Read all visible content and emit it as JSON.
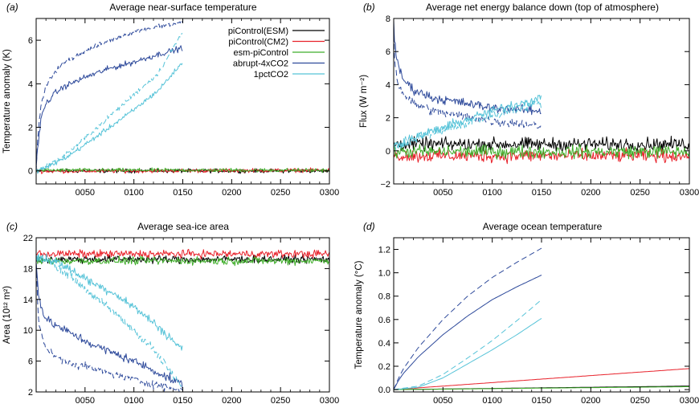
{
  "colors": {
    "piControl_ESM": "#000000",
    "piControl_CM2": "#e8212a",
    "esm_piControl": "#3fae2a",
    "abrupt_4xCO2": "#2e4a9b",
    "pct1CO2": "#56c3d8"
  },
  "legend": {
    "position": "top-right of panel (a)",
    "entries": [
      {
        "label": "piControl(ESM)",
        "color": "#000000"
      },
      {
        "label": "piControl(CM2)",
        "color": "#e8212a"
      },
      {
        "label": "esm-piControl",
        "color": "#3fae2a"
      },
      {
        "label": "abrupt-4xCO2",
        "color": "#2e4a9b"
      },
      {
        "label": "1pctCO2",
        "color": "#56c3d8"
      }
    ]
  },
  "chart_data": [
    {
      "type": "line",
      "panel_label": "(a)",
      "title": "Average near-surface temperature",
      "xlabel": "",
      "ylabel": "Temperature anomaly (K)",
      "xlim": [
        0,
        300
      ],
      "ylim": [
        -0.6,
        7.0
      ],
      "x_ticks": [
        50,
        100,
        150,
        200,
        250,
        300
      ],
      "x_tick_labels": [
        "0050",
        "0100",
        "0150",
        "0200",
        "0250",
        "0300"
      ],
      "y_ticks": [
        0,
        2,
        4,
        6
      ],
      "y_tick_labels": [
        "0",
        "2",
        "4",
        "6"
      ],
      "grid": false,
      "series": [
        {
          "id": "piControl_ESM",
          "style": "solid",
          "noise": 0.08,
          "x": [
            0,
            300
          ],
          "y": [
            0,
            0
          ]
        },
        {
          "id": "piControl_CM2",
          "style": "solid",
          "noise": 0.08,
          "x": [
            0,
            300
          ],
          "y": [
            -0.02,
            0.03
          ]
        },
        {
          "id": "esm_piControl",
          "style": "solid",
          "noise": 0.08,
          "x": [
            0,
            300
          ],
          "y": [
            0.03,
            0.03
          ]
        },
        {
          "id": "abrupt_4xCO2",
          "style": "solid",
          "noise": 0.12,
          "x": [
            0,
            1,
            3,
            5,
            10,
            20,
            30,
            50,
            75,
            100,
            125,
            150
          ],
          "y": [
            0,
            0.8,
            1.6,
            2.4,
            3.1,
            3.6,
            3.9,
            4.3,
            4.7,
            5.0,
            5.35,
            5.65
          ]
        },
        {
          "id": "abrupt_4xCO2",
          "style": "dashed",
          "noise": 0.1,
          "x": [
            0,
            1,
            3,
            5,
            10,
            20,
            30,
            50,
            75,
            100,
            125,
            150
          ],
          "y": [
            0,
            1.0,
            2.2,
            3.0,
            3.9,
            4.6,
            5.0,
            5.5,
            6.0,
            6.4,
            6.65,
            6.8
          ]
        },
        {
          "id": "pct1CO2",
          "style": "solid",
          "noise": 0.1,
          "x": [
            0,
            10,
            30,
            50,
            75,
            100,
            125,
            150
          ],
          "y": [
            0,
            0.15,
            0.6,
            1.2,
            2.0,
            2.8,
            3.7,
            5.0
          ]
        },
        {
          "id": "pct1CO2",
          "style": "dashed",
          "noise": 0.1,
          "x": [
            0,
            10,
            30,
            50,
            75,
            100,
            125,
            150
          ],
          "y": [
            0,
            0.2,
            0.75,
            1.5,
            2.5,
            3.5,
            4.5,
            6.4
          ]
        }
      ]
    },
    {
      "type": "line",
      "panel_label": "(b)",
      "title": "Average net energy balance down (top of atmosphere)",
      "xlabel": "",
      "ylabel": "Flux (W m⁻²)",
      "xlim": [
        0,
        300
      ],
      "ylim": [
        -2,
        8
      ],
      "x_ticks": [
        50,
        100,
        150,
        200,
        250,
        300
      ],
      "x_tick_labels": [
        "0050",
        "0100",
        "0150",
        "0200",
        "0250",
        "0300"
      ],
      "y_ticks": [
        -2,
        0,
        2,
        4,
        6,
        8
      ],
      "y_tick_labels": [
        "−2",
        "0",
        "2",
        "4",
        "6",
        "8"
      ],
      "grid": false,
      "series": [
        {
          "id": "piControl_ESM",
          "style": "solid",
          "noise": 0.35,
          "x": [
            0,
            300
          ],
          "y": [
            0.4,
            0.4
          ]
        },
        {
          "id": "piControl_CM2",
          "style": "solid",
          "noise": 0.35,
          "x": [
            0,
            300
          ],
          "y": [
            -0.3,
            -0.3
          ]
        },
        {
          "id": "esm_piControl",
          "style": "solid",
          "noise": 0.35,
          "x": [
            0,
            300
          ],
          "y": [
            -0.05,
            -0.05
          ]
        },
        {
          "id": "abrupt_4xCO2",
          "style": "solid",
          "noise": 0.25,
          "x": [
            0,
            1,
            3,
            5,
            10,
            20,
            40,
            70,
            100,
            150
          ],
          "y": [
            7.9,
            6.5,
            5.6,
            5.0,
            4.3,
            3.7,
            3.2,
            2.9,
            2.6,
            2.4
          ]
        },
        {
          "id": "abrupt_4xCO2",
          "style": "dashed",
          "noise": 0.25,
          "x": [
            0,
            1,
            3,
            5,
            10,
            20,
            40,
            70,
            100,
            150
          ],
          "y": [
            7.5,
            5.5,
            4.5,
            4.0,
            3.4,
            2.9,
            2.4,
            2.1,
            1.8,
            1.5
          ]
        },
        {
          "id": "pct1CO2",
          "style": "solid",
          "noise": 0.25,
          "x": [
            0,
            20,
            50,
            80,
            110,
            150
          ],
          "y": [
            0.3,
            0.8,
            1.4,
            2.0,
            2.6,
            3.2
          ]
        },
        {
          "id": "pct1CO2",
          "style": "dashed",
          "noise": 0.25,
          "x": [
            0,
            20,
            50,
            80,
            110,
            150
          ],
          "y": [
            0.2,
            0.7,
            1.2,
            1.8,
            2.3,
            2.9
          ]
        }
      ]
    },
    {
      "type": "line",
      "panel_label": "(c)",
      "title": "Average sea-ice area",
      "xlabel": "",
      "ylabel": "Area (10¹² m²)",
      "xlim": [
        0,
        300
      ],
      "ylim": [
        2,
        22
      ],
      "x_ticks": [
        50,
        100,
        150,
        200,
        250,
        300
      ],
      "x_tick_labels": [
        "0050",
        "0100",
        "0150",
        "0200",
        "0250",
        "0300"
      ],
      "y_ticks": [
        2,
        6,
        10,
        14,
        18,
        22
      ],
      "y_tick_labels": [
        "2",
        "6",
        "10",
        "14",
        "18",
        "22"
      ],
      "grid": false,
      "series": [
        {
          "id": "piControl_ESM",
          "style": "solid",
          "noise": 0.45,
          "x": [
            0,
            300
          ],
          "y": [
            19.2,
            19.2
          ]
        },
        {
          "id": "piControl_CM2",
          "style": "solid",
          "noise": 0.45,
          "x": [
            0,
            300
          ],
          "y": [
            19.9,
            19.9
          ]
        },
        {
          "id": "esm_piControl",
          "style": "solid",
          "noise": 0.45,
          "x": [
            0,
            300
          ],
          "y": [
            19.0,
            19.0
          ]
        },
        {
          "id": "abrupt_4xCO2",
          "style": "solid",
          "noise": 0.5,
          "x": [
            0,
            2,
            5,
            10,
            15,
            25,
            40,
            60,
            80,
            100,
            120,
            140,
            150
          ],
          "y": [
            19.5,
            15.0,
            13.0,
            11.5,
            11.0,
            10.3,
            9.3,
            8.0,
            7.0,
            6.0,
            4.8,
            3.5,
            3.0
          ]
        },
        {
          "id": "abrupt_4xCO2",
          "style": "dashed",
          "noise": 0.45,
          "x": [
            0,
            2,
            5,
            10,
            15,
            25,
            40,
            60,
            80,
            100,
            120,
            140,
            150
          ],
          "y": [
            19.0,
            12.0,
            9.5,
            7.8,
            7.0,
            6.2,
            5.6,
            5.0,
            4.3,
            3.6,
            3.0,
            2.4,
            2.2
          ]
        },
        {
          "id": "pct1CO2",
          "style": "solid",
          "noise": 0.5,
          "x": [
            0,
            20,
            40,
            60,
            80,
            100,
            120,
            150
          ],
          "y": [
            19.5,
            19.0,
            17.5,
            16.0,
            14.8,
            13.0,
            11.0,
            7.5
          ]
        },
        {
          "id": "pct1CO2",
          "style": "dashed",
          "noise": 0.5,
          "x": [
            0,
            20,
            40,
            60,
            80,
            100,
            120,
            150
          ],
          "y": [
            19.5,
            18.5,
            16.5,
            14.3,
            12.3,
            10.0,
            7.5,
            2.5
          ]
        }
      ]
    },
    {
      "type": "line",
      "panel_label": "(d)",
      "title": "Average ocean temperature",
      "xlabel": "",
      "ylabel": "Temperature anomaly (°C)",
      "xlim": [
        0,
        300
      ],
      "ylim": [
        -0.02,
        1.3
      ],
      "x_ticks": [
        50,
        100,
        150,
        200,
        250,
        300
      ],
      "x_tick_labels": [
        "0050",
        "0100",
        "0150",
        "0200",
        "0250",
        "0300"
      ],
      "y_ticks": [
        0,
        0.2,
        0.4,
        0.6,
        0.8,
        1.0,
        1.2
      ],
      "y_tick_labels": [
        "0.0",
        "0.2",
        "0.4",
        "0.6",
        "0.8",
        "1.0",
        "1.2"
      ],
      "grid": false,
      "series": [
        {
          "id": "piControl_ESM",
          "style": "solid",
          "noise": 0,
          "x": [
            0,
            300
          ],
          "y": [
            0,
            0.03
          ]
        },
        {
          "id": "piControl_CM2",
          "style": "solid",
          "noise": 0,
          "x": [
            0,
            300
          ],
          "y": [
            0,
            0.18
          ]
        },
        {
          "id": "esm_piControl",
          "style": "solid",
          "noise": 0,
          "x": [
            0,
            300
          ],
          "y": [
            0,
            0.025
          ]
        },
        {
          "id": "abrupt_4xCO2",
          "style": "solid",
          "noise": 0,
          "x": [
            0,
            5,
            10,
            25,
            50,
            75,
            100,
            125,
            150
          ],
          "y": [
            0,
            0.08,
            0.14,
            0.28,
            0.47,
            0.63,
            0.77,
            0.88,
            0.98
          ]
        },
        {
          "id": "abrupt_4xCO2",
          "style": "dashed",
          "noise": 0,
          "x": [
            0,
            5,
            10,
            25,
            50,
            75,
            100,
            125,
            150
          ],
          "y": [
            0,
            0.1,
            0.18,
            0.36,
            0.6,
            0.8,
            0.96,
            1.09,
            1.21
          ]
        },
        {
          "id": "pct1CO2",
          "style": "solid",
          "noise": 0,
          "x": [
            0,
            25,
            50,
            75,
            100,
            125,
            150
          ],
          "y": [
            0,
            0.02,
            0.1,
            0.22,
            0.34,
            0.47,
            0.61
          ]
        },
        {
          "id": "pct1CO2",
          "style": "dashed",
          "noise": 0,
          "x": [
            0,
            25,
            50,
            75,
            100,
            125,
            150
          ],
          "y": [
            0,
            0.03,
            0.13,
            0.27,
            0.42,
            0.59,
            0.77
          ]
        }
      ]
    }
  ]
}
